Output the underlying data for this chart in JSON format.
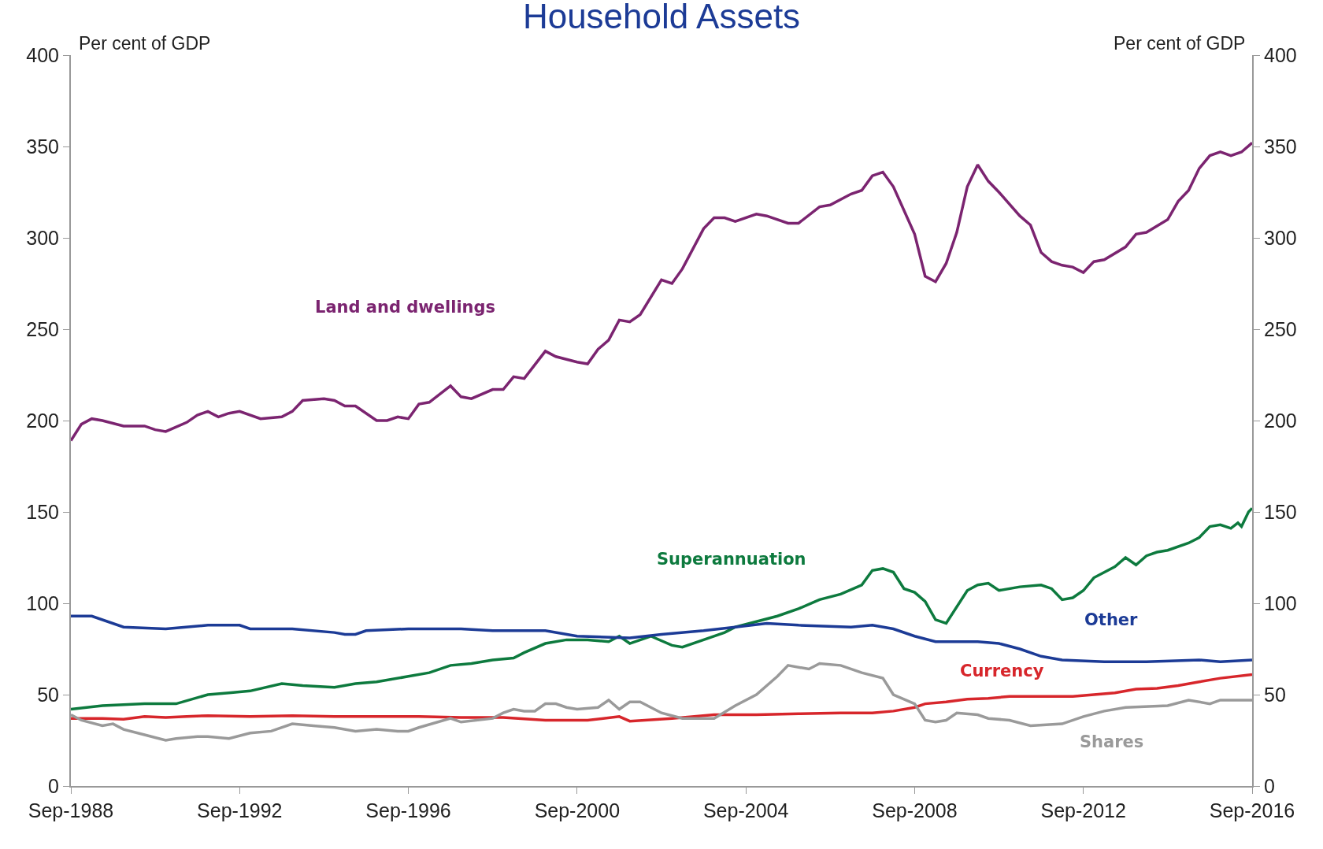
{
  "chart_data": {
    "type": "line",
    "title": "Household Assets",
    "ylabel": "Per cent of GDP",
    "y2label": "Per cent of GDP",
    "xlim": [
      "1988-09",
      "2016-09"
    ],
    "xticks": [
      {
        "value": "1988-09",
        "label": "Sep-1988"
      },
      {
        "value": "1992-09",
        "label": "Sep-1992"
      },
      {
        "value": "1996-09",
        "label": "Sep-1996"
      },
      {
        "value": "2000-09",
        "label": "Sep-2000"
      },
      {
        "value": "2004-09",
        "label": "Sep-2004"
      },
      {
        "value": "2008-09",
        "label": "Sep-2008"
      },
      {
        "value": "2012-09",
        "label": "Sep-2012"
      },
      {
        "value": "2016-09",
        "label": "Sep-2016"
      }
    ],
    "ylim": [
      0,
      400
    ],
    "yticks": [
      0,
      50,
      100,
      150,
      200,
      250,
      300,
      350,
      400
    ],
    "y2lim": [
      0,
      400
    ],
    "y2ticks": [
      0,
      50,
      100,
      150,
      200,
      250,
      300,
      350,
      400
    ],
    "legend": false,
    "marker": "none",
    "line_style": "solid",
    "series": [
      {
        "name": "Land and dwellings",
        "color": "#7b2470",
        "x": [
          "1988-09",
          "1988-12",
          "1989-03",
          "1989-06",
          "1989-12",
          "1990-06",
          "1990-09",
          "1990-12",
          "1991-06",
          "1991-09",
          "1991-12",
          "1992-03",
          "1992-06",
          "1992-09",
          "1993-03",
          "1993-09",
          "1993-12",
          "1994-03",
          "1994-09",
          "1994-12",
          "1995-03",
          "1995-06",
          "1995-12",
          "1996-03",
          "1996-06",
          "1996-09",
          "1996-12",
          "1997-03",
          "1997-09",
          "1997-12",
          "1998-03",
          "1998-09",
          "1998-12",
          "1999-03",
          "1999-06",
          "1999-12",
          "2000-03",
          "2000-09",
          "2000-12",
          "2001-03",
          "2001-06",
          "2001-09",
          "2001-12",
          "2002-03",
          "2002-09",
          "2002-12",
          "2003-03",
          "2003-09",
          "2003-12",
          "2004-03",
          "2004-06",
          "2004-12",
          "2005-03",
          "2005-09",
          "2005-12",
          "2006-06",
          "2006-09",
          "2007-03",
          "2007-06",
          "2007-09",
          "2007-12",
          "2008-03",
          "2008-09",
          "2008-12",
          "2009-03",
          "2009-06",
          "2009-09",
          "2009-12",
          "2010-03",
          "2010-06",
          "2010-09",
          "2011-03",
          "2011-06",
          "2011-09",
          "2011-12",
          "2012-03",
          "2012-06",
          "2012-09",
          "2012-12",
          "2013-03",
          "2013-09",
          "2013-12",
          "2014-03",
          "2014-09",
          "2014-12",
          "2015-03",
          "2015-06",
          "2015-09",
          "2015-12",
          "2016-03",
          "2016-06",
          "2016-09"
        ],
        "values": [
          189,
          198,
          201,
          200,
          197,
          197,
          195,
          194,
          199,
          203,
          205,
          202,
          204,
          205,
          201,
          202,
          205,
          211,
          212,
          211,
          208,
          208,
          200,
          200,
          202,
          201,
          209,
          210,
          219,
          213,
          212,
          217,
          217,
          224,
          223,
          238,
          235,
          232,
          231,
          239,
          244,
          255,
          254,
          258,
          277,
          275,
          283,
          305,
          311,
          311,
          309,
          313,
          312,
          308,
          308,
          317,
          318,
          324,
          326,
          334,
          336,
          328,
          302,
          279,
          276,
          286,
          303,
          328,
          340,
          331,
          325,
          312,
          307,
          292,
          287,
          285,
          284,
          281,
          287,
          288,
          295,
          302,
          303,
          310,
          320,
          326,
          338,
          345,
          347,
          345,
          347,
          352
        ]
      },
      {
        "name": "Superannuation",
        "color": "#0d7a3e",
        "x": [
          "1988-09",
          "1989-06",
          "1990-06",
          "1991-03",
          "1991-12",
          "1992-06",
          "1992-12",
          "1993-09",
          "1994-03",
          "1994-12",
          "1995-06",
          "1995-12",
          "1996-09",
          "1997-03",
          "1997-09",
          "1998-03",
          "1998-09",
          "1999-03",
          "1999-06",
          "1999-12",
          "2000-06",
          "2000-12",
          "2001-06",
          "2001-09",
          "2001-12",
          "2002-06",
          "2002-12",
          "2003-03",
          "2003-09",
          "2004-03",
          "2004-06",
          "2004-12",
          "2005-06",
          "2005-12",
          "2006-06",
          "2006-12",
          "2007-06",
          "2007-09",
          "2007-12",
          "2008-03",
          "2008-06",
          "2008-09",
          "2008-12",
          "2009-03",
          "2009-06",
          "2009-12",
          "2010-03",
          "2010-06",
          "2010-09",
          "2011-03",
          "2011-09",
          "2011-12",
          "2012-03",
          "2012-06",
          "2012-09",
          "2012-12",
          "2013-06",
          "2013-09",
          "2013-12",
          "2014-03",
          "2014-06",
          "2014-09",
          "2015-03",
          "2015-06",
          "2015-09",
          "2015-12",
          "2016-03",
          "2016-05",
          "2016-06",
          "2016-08",
          "2016-09"
        ],
        "values": [
          42,
          44,
          45,
          45,
          50,
          51,
          52,
          56,
          55,
          54,
          56,
          57,
          60,
          62,
          66,
          67,
          69,
          70,
          73,
          78,
          80,
          80,
          79,
          82,
          78,
          82,
          77,
          76,
          80,
          84,
          87,
          90,
          93,
          97,
          102,
          105,
          110,
          118,
          119,
          117,
          108,
          106,
          101,
          91,
          89,
          107,
          110,
          111,
          107,
          109,
          110,
          108,
          102,
          103,
          107,
          114,
          120,
          125,
          121,
          126,
          128,
          129,
          133,
          136,
          142,
          143,
          141,
          144,
          142,
          150,
          152
        ]
      },
      {
        "name": "Other",
        "color": "#1c3b96",
        "x": [
          "1988-09",
          "1989-03",
          "1989-12",
          "1990-12",
          "1991-12",
          "1992-09",
          "1992-12",
          "1993-12",
          "1994-12",
          "1995-03",
          "1995-06",
          "1995-09",
          "1996-09",
          "1997-12",
          "1998-09",
          "1999-12",
          "2000-09",
          "2001-12",
          "2002-09",
          "2003-09",
          "2004-06",
          "2005-03",
          "2005-12",
          "2007-03",
          "2007-09",
          "2008-03",
          "2008-09",
          "2009-03",
          "2009-09",
          "2010-03",
          "2010-09",
          "2011-03",
          "2011-09",
          "2012-03",
          "2013-03",
          "2014-03",
          "2015-06",
          "2015-12",
          "2016-09"
        ],
        "values": [
          93,
          93,
          87,
          86,
          88,
          88,
          86,
          86,
          84,
          83,
          83,
          85,
          86,
          86,
          85,
          85,
          82,
          81,
          83,
          85,
          87,
          89,
          88,
          87,
          88,
          86,
          82,
          79,
          79,
          79,
          78,
          75,
          71,
          69,
          68,
          68,
          69,
          68,
          69
        ]
      },
      {
        "name": "Currency",
        "color": "#d7262b",
        "x": [
          "1988-09",
          "1989-06",
          "1989-12",
          "1990-06",
          "1990-12",
          "1991-06",
          "1991-12",
          "1992-12",
          "1993-12",
          "1994-12",
          "1995-12",
          "1996-12",
          "1997-12",
          "1998-12",
          "1999-12",
          "2000-12",
          "2001-09",
          "2001-12",
          "2002-12",
          "2003-12",
          "2004-12",
          "2005-12",
          "2006-12",
          "2007-09",
          "2008-03",
          "2008-09",
          "2008-12",
          "2009-06",
          "2009-12",
          "2010-06",
          "2010-12",
          "2011-12",
          "2012-06",
          "2012-12",
          "2013-06",
          "2013-12",
          "2014-06",
          "2014-12",
          "2015-06",
          "2015-12",
          "2016-09"
        ],
        "values": [
          37,
          37,
          36.5,
          38,
          37.5,
          38,
          38.5,
          38,
          38.5,
          38,
          38,
          38,
          37.5,
          37.5,
          36,
          36,
          38,
          35.5,
          37,
          39,
          39,
          39.5,
          40,
          40,
          41,
          43,
          45,
          46,
          47.5,
          48,
          49,
          49,
          49,
          50,
          51,
          53,
          53.5,
          55,
          57,
          59,
          61
        ]
      },
      {
        "name": "Shares",
        "color": "#9a9a9a",
        "x": [
          "1988-09",
          "1988-12",
          "1989-06",
          "1989-09",
          "1989-12",
          "1990-06",
          "1990-12",
          "1991-03",
          "1991-09",
          "1991-12",
          "1992-06",
          "1992-12",
          "1993-06",
          "1993-12",
          "1994-06",
          "1994-12",
          "1995-06",
          "1995-12",
          "1996-06",
          "1996-09",
          "1996-12",
          "1997-09",
          "1997-12",
          "1998-09",
          "1998-12",
          "1999-03",
          "1999-06",
          "1999-09",
          "1999-12",
          "2000-03",
          "2000-06",
          "2000-09",
          "2001-03",
          "2001-06",
          "2001-09",
          "2001-12",
          "2002-03",
          "2002-09",
          "2003-03",
          "2003-09",
          "2003-12",
          "2004-06",
          "2004-12",
          "2005-06",
          "2005-09",
          "2006-03",
          "2006-06",
          "2006-12",
          "2007-06",
          "2007-12",
          "2008-03",
          "2008-09",
          "2008-12",
          "2009-03",
          "2009-06",
          "2009-09",
          "2010-03",
          "2010-06",
          "2010-12",
          "2011-06",
          "2012-03",
          "2012-09",
          "2013-03",
          "2013-09",
          "2014-09",
          "2015-03",
          "2015-09",
          "2015-12",
          "2016-09"
        ],
        "values": [
          39,
          36,
          33,
          34,
          31,
          28,
          25,
          26,
          27,
          27,
          26,
          29,
          30,
          34,
          33,
          32,
          30,
          31,
          30,
          30,
          32,
          37,
          35,
          37,
          40,
          42,
          41,
          41,
          45,
          45,
          43,
          42,
          43,
          47,
          42,
          46,
          46,
          40,
          37,
          37,
          37,
          44,
          50,
          60,
          66,
          64,
          67,
          66,
          62,
          59,
          50,
          45,
          36,
          35,
          36,
          40,
          39,
          37,
          36,
          33,
          34,
          38,
          41,
          43,
          44,
          47,
          45,
          47,
          47
        ]
      }
    ]
  }
}
